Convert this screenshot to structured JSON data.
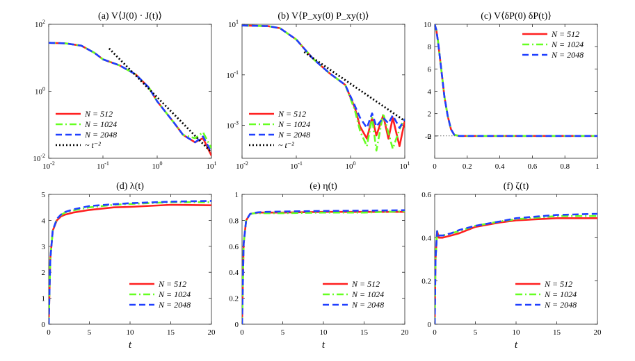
{
  "chart_data": [
    {
      "id": "a",
      "type": "line",
      "title": "(a) V⟨J(0) · J(t)⟩",
      "xscale": "log",
      "yscale": "log",
      "xlim": [
        0.01,
        10
      ],
      "ylim": [
        0.01,
        100
      ],
      "xticks": [
        0.01,
        0.1,
        1,
        10
      ],
      "xticklabels": [
        "10",
        "10",
        "10",
        "10"
      ],
      "xtickexp": [
        "-2",
        "-1",
        "0",
        "1"
      ],
      "yticks": [
        0.01,
        1,
        100
      ],
      "yticklabels": [
        "10",
        "10",
        "10"
      ],
      "ytickexp": [
        "-2",
        "0",
        "2"
      ],
      "xlabel": "",
      "legend_position": "bottom-left",
      "x": [
        0.01,
        0.02,
        0.04,
        0.07,
        0.1,
        0.2,
        0.4,
        0.7,
        1,
        2,
        3,
        5,
        7,
        10
      ],
      "series": [
        {
          "name": "N = 512",
          "color": "#ff1f1f",
          "dash": "solid",
          "values": [
            28,
            27,
            23,
            14,
            9,
            6,
            3.2,
            1.3,
            0.5,
            0.12,
            0.05,
            0.03,
            0.04,
            0.012
          ]
        },
        {
          "name": "N = 1024",
          "color": "#66ff22",
          "dash": "dashdot",
          "values": [
            28,
            27,
            23,
            14,
            9,
            6,
            3.2,
            1.3,
            0.5,
            0.12,
            0.05,
            0.04,
            0.06,
            0.02
          ]
        },
        {
          "name": "N = 2048",
          "color": "#1f3fff",
          "dash": "dashed",
          "values": [
            28,
            27,
            23,
            14,
            9,
            6,
            3.2,
            1.3,
            0.5,
            0.12,
            0.05,
            0.03,
            0.045,
            0.015
          ]
        }
      ],
      "reference": {
        "name": "~ t⁻²",
        "color": "#000000",
        "dash": "dotted",
        "x": [
          0.13,
          10
        ],
        "values": [
          19,
          0.015
        ]
      }
    },
    {
      "id": "b",
      "type": "line",
      "title": "(b) V⟨P_xy(0) P_xy(t)⟩",
      "xscale": "log",
      "yscale": "log",
      "xlim": [
        0.01,
        10
      ],
      "ylim": [
        5e-05,
        10
      ],
      "xticks": [
        0.01,
        0.1,
        1,
        10
      ],
      "xticklabels": [
        "10",
        "10",
        "10",
        "10"
      ],
      "xtickexp": [
        "-2",
        "-1",
        "0",
        "1"
      ],
      "yticks": [
        0.001,
        0.1,
        10
      ],
      "yticklabels": [
        "10",
        "10",
        "10"
      ],
      "ytickexp": [
        "-3",
        "-1",
        "1"
      ],
      "xlabel": "",
      "legend_position": "bottom-left",
      "x": [
        0.01,
        0.03,
        0.05,
        0.1,
        0.2,
        0.4,
        0.8,
        1.2,
        1.5,
        2,
        2.5,
        3,
        4,
        5,
        6,
        8,
        10
      ],
      "series": [
        {
          "name": "N = 512",
          "color": "#ff1f1f",
          "dash": "solid",
          "values": [
            9,
            8.5,
            7,
            2.5,
            0.45,
            0.12,
            0.04,
            0.005,
            0.0009,
            0.0003,
            0.002,
            0.0004,
            0.0025,
            0.0003,
            0.002,
            0.00015,
            0.0015
          ]
        },
        {
          "name": "N = 1024",
          "color": "#66ff22",
          "dash": "dashdot",
          "values": [
            9,
            8.5,
            7,
            2.5,
            0.45,
            0.12,
            0.04,
            0.004,
            0.0006,
            0.00015,
            0.002,
            0.0001,
            0.003,
            0.0005,
            0.00012,
            0.0007,
            0.002
          ]
        },
        {
          "name": "N = 2048",
          "color": "#1f3fff",
          "dash": "dashed",
          "values": [
            9,
            8.5,
            7,
            2.5,
            0.45,
            0.12,
            0.04,
            0.006,
            0.002,
            0.0008,
            0.003,
            0.0009,
            0.002,
            0.0012,
            0.0025,
            0.0008,
            0.0018
          ]
        }
      ],
      "reference": {
        "name": "~ t⁻²",
        "color": "#000000",
        "dash": "dotted",
        "x": [
          0.14,
          10
        ],
        "values": [
          0.8,
          0.0015
        ]
      }
    },
    {
      "id": "c",
      "type": "line",
      "title": "(c) V⟨δP(0) δP(t)⟩",
      "xscale": "linear",
      "yscale": "linear",
      "xlim": [
        0,
        1
      ],
      "ylim": [
        -2,
        10
      ],
      "xticks": [
        0,
        0.2,
        0.4,
        0.6,
        0.8,
        1
      ],
      "xticklabels": [
        "0",
        "0.2",
        "0.4",
        "0.6",
        "0.8",
        "1"
      ],
      "yticks": [
        -2,
        0,
        2,
        4,
        6,
        8,
        10
      ],
      "yticklabels": [
        "-2",
        "0",
        "2",
        "4",
        "6",
        "8",
        "10"
      ],
      "xlabel": "",
      "legend_position": "top-right",
      "zero_line": true,
      "x": [
        0,
        0.01,
        0.02,
        0.04,
        0.06,
        0.08,
        0.1,
        0.12,
        0.15,
        0.2,
        0.3,
        0.5,
        0.7,
        1
      ],
      "series": [
        {
          "name": "N = 512",
          "color": "#ff1f1f",
          "dash": "solid",
          "values": [
            10,
            9.5,
            8.5,
            6,
            3.5,
            1.8,
            0.6,
            0.1,
            -0.15,
            -0.12,
            -0.05,
            0,
            0,
            0
          ]
        },
        {
          "name": "N = 1024",
          "color": "#66ff22",
          "dash": "dashdot",
          "values": [
            10,
            9.5,
            8.5,
            6,
            3.5,
            1.8,
            0.6,
            0.1,
            -0.15,
            -0.12,
            -0.05,
            0,
            0,
            0
          ]
        },
        {
          "name": "N = 2048",
          "color": "#1f3fff",
          "dash": "dashed",
          "values": [
            10,
            9.5,
            8.5,
            6,
            3.5,
            1.8,
            0.6,
            0.1,
            -0.15,
            -0.12,
            -0.05,
            0,
            0,
            0
          ]
        }
      ]
    },
    {
      "id": "d",
      "type": "line",
      "title": "(d) λ(t)",
      "xscale": "linear",
      "yscale": "linear",
      "xlim": [
        0,
        20
      ],
      "ylim": [
        0,
        5
      ],
      "xticks": [
        0,
        5,
        10,
        15,
        20
      ],
      "xticklabels": [
        "0",
        "5",
        "10",
        "15",
        "20"
      ],
      "yticks": [
        0,
        1,
        2,
        3,
        4,
        5
      ],
      "yticklabels": [
        "0",
        "1",
        "2",
        "3",
        "4",
        "5"
      ],
      "xlabel": "t",
      "legend_position": "bottom-right",
      "x": [
        0,
        0.2,
        0.5,
        1,
        1.5,
        2,
        3,
        5,
        8,
        10,
        15,
        20
      ],
      "series": [
        {
          "name": "N = 512",
          "color": "#ff1f1f",
          "dash": "solid",
          "values": [
            0,
            2.5,
            3.6,
            4.0,
            4.15,
            4.22,
            4.3,
            4.4,
            4.5,
            4.52,
            4.6,
            4.58
          ]
        },
        {
          "name": "N = 1024",
          "color": "#66ff22",
          "dash": "dashdot",
          "values": [
            0,
            2.5,
            3.6,
            4.05,
            4.2,
            4.3,
            4.38,
            4.5,
            4.6,
            4.63,
            4.7,
            4.7
          ]
        },
        {
          "name": "N = 2048",
          "color": "#1f3fff",
          "dash": "dashed",
          "values": [
            0,
            2.5,
            3.6,
            4.05,
            4.22,
            4.32,
            4.42,
            4.55,
            4.62,
            4.66,
            4.72,
            4.75
          ]
        }
      ]
    },
    {
      "id": "e",
      "type": "line",
      "title": "(e) η(t)",
      "xscale": "linear",
      "yscale": "linear",
      "xlim": [
        0,
        20
      ],
      "ylim": [
        0,
        1
      ],
      "xticks": [
        0,
        5,
        10,
        15,
        20
      ],
      "xticklabels": [
        "0",
        "5",
        "10",
        "15",
        "20"
      ],
      "yticks": [
        0,
        0.2,
        0.4,
        0.6,
        0.8,
        1
      ],
      "yticklabels": [
        "0",
        "0.2",
        "0.4",
        "0.6",
        "0.8",
        "1"
      ],
      "xlabel": "t",
      "legend_position": "bottom-right",
      "x": [
        0,
        0.2,
        0.5,
        1,
        1.5,
        2,
        3,
        5,
        10,
        15,
        20
      ],
      "series": [
        {
          "name": "N = 512",
          "color": "#ff1f1f",
          "dash": "solid",
          "values": [
            0,
            0.62,
            0.8,
            0.85,
            0.855,
            0.86,
            0.86,
            0.86,
            0.865,
            0.865,
            0.865
          ]
        },
        {
          "name": "N = 1024",
          "color": "#66ff22",
          "dash": "dashdot",
          "values": [
            0,
            0.62,
            0.8,
            0.85,
            0.855,
            0.855,
            0.855,
            0.855,
            0.86,
            0.86,
            0.87
          ]
        },
        {
          "name": "N = 2048",
          "color": "#1f3fff",
          "dash": "dashed",
          "values": [
            0,
            0.62,
            0.8,
            0.85,
            0.858,
            0.862,
            0.865,
            0.868,
            0.872,
            0.875,
            0.878
          ]
        }
      ]
    },
    {
      "id": "f",
      "type": "line",
      "title": "(f) ζ(t)",
      "xscale": "linear",
      "yscale": "linear",
      "xlim": [
        0,
        20
      ],
      "ylim": [
        0,
        0.6
      ],
      "xticks": [
        0,
        5,
        10,
        15,
        20
      ],
      "xticklabels": [
        "0",
        "5",
        "10",
        "15",
        "20"
      ],
      "yticks": [
        0,
        0.2,
        0.4,
        0.6
      ],
      "yticklabels": [
        "0",
        "0.2",
        "0.4",
        "0.6"
      ],
      "xlabel": "t",
      "legend_position": "bottom-right",
      "x": [
        0,
        0.1,
        0.3,
        0.5,
        1,
        2,
        3,
        5,
        8,
        10,
        15,
        20
      ],
      "series": [
        {
          "name": "N = 512",
          "color": "#ff1f1f",
          "dash": "solid",
          "values": [
            0,
            0.3,
            0.43,
            0.4,
            0.4,
            0.41,
            0.42,
            0.45,
            0.47,
            0.48,
            0.49,
            0.49
          ]
        },
        {
          "name": "N = 1024",
          "color": "#66ff22",
          "dash": "dashdot",
          "values": [
            0,
            0.3,
            0.43,
            0.41,
            0.41,
            0.42,
            0.43,
            0.455,
            0.475,
            0.485,
            0.5,
            0.5
          ]
        },
        {
          "name": "N = 2048",
          "color": "#1f3fff",
          "dash": "dashed",
          "values": [
            0,
            0.3,
            0.43,
            0.41,
            0.41,
            0.42,
            0.435,
            0.455,
            0.475,
            0.49,
            0.505,
            0.51
          ]
        }
      ]
    }
  ]
}
